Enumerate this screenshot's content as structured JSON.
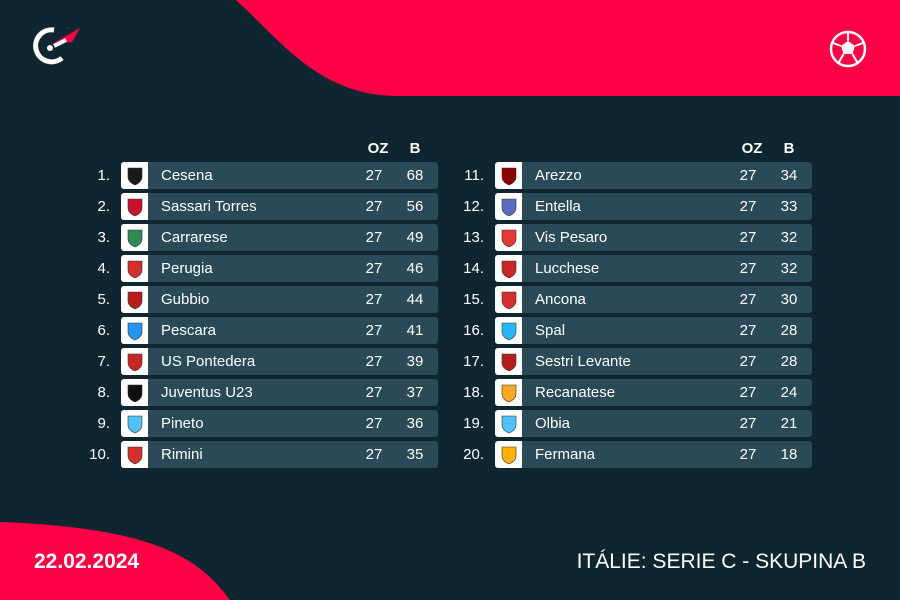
{
  "date": "22.02.2024",
  "competition": "ITÁLIE: SERIE C - SKUPINA B",
  "colors": {
    "background": "#0f2631",
    "accent": "#ff0046",
    "row": "#2a4a57"
  },
  "icons": {
    "logo": "flashscore-logo-icon",
    "sport": "soccer-ball-icon"
  },
  "headers": {
    "played": "OZ",
    "points": "B"
  },
  "standings_left": [
    {
      "rank": "1.",
      "team": "Cesena",
      "played": "27",
      "points": "68",
      "color": "#1a1a1a"
    },
    {
      "rank": "2.",
      "team": "Sassari Torres",
      "played": "27",
      "points": "56",
      "color": "#c8102e"
    },
    {
      "rank": "3.",
      "team": "Carrarese",
      "played": "27",
      "points": "49",
      "color": "#2e8b57"
    },
    {
      "rank": "4.",
      "team": "Perugia",
      "played": "27",
      "points": "46",
      "color": "#d32f2f"
    },
    {
      "rank": "5.",
      "team": "Gubbio",
      "played": "27",
      "points": "44",
      "color": "#b71c1c"
    },
    {
      "rank": "6.",
      "team": "Pescara",
      "played": "27",
      "points": "41",
      "color": "#2196f3"
    },
    {
      "rank": "7.",
      "team": "US Pontedera",
      "played": "27",
      "points": "39",
      "color": "#c62828"
    },
    {
      "rank": "8.",
      "team": "Juventus U23",
      "played": "27",
      "points": "37",
      "color": "#111111"
    },
    {
      "rank": "9.",
      "team": "Pineto",
      "played": "27",
      "points": "36",
      "color": "#4fc3f7"
    },
    {
      "rank": "10.",
      "team": "Rimini",
      "played": "27",
      "points": "35",
      "color": "#d32f2f"
    }
  ],
  "standings_right": [
    {
      "rank": "11.",
      "team": "Arezzo",
      "played": "27",
      "points": "34",
      "color": "#8b0000"
    },
    {
      "rank": "12.",
      "team": "Entella",
      "played": "27",
      "points": "33",
      "color": "#5c6bc0"
    },
    {
      "rank": "13.",
      "team": "Vis Pesaro",
      "played": "27",
      "points": "32",
      "color": "#e53935"
    },
    {
      "rank": "14.",
      "team": "Lucchese",
      "played": "27",
      "points": "32",
      "color": "#c62828"
    },
    {
      "rank": "15.",
      "team": "Ancona",
      "played": "27",
      "points": "30",
      "color": "#d32f2f"
    },
    {
      "rank": "16.",
      "team": "Spal",
      "played": "27",
      "points": "28",
      "color": "#29b6f6"
    },
    {
      "rank": "17.",
      "team": "Sestri Levante",
      "played": "27",
      "points": "28",
      "color": "#b71c1c"
    },
    {
      "rank": "18.",
      "team": "Recanatese",
      "played": "27",
      "points": "24",
      "color": "#f9a825"
    },
    {
      "rank": "19.",
      "team": "Olbia",
      "played": "27",
      "points": "21",
      "color": "#4fc3f7"
    },
    {
      "rank": "20.",
      "team": "Fermana",
      "played": "27",
      "points": "18",
      "color": "#ffb300"
    }
  ]
}
